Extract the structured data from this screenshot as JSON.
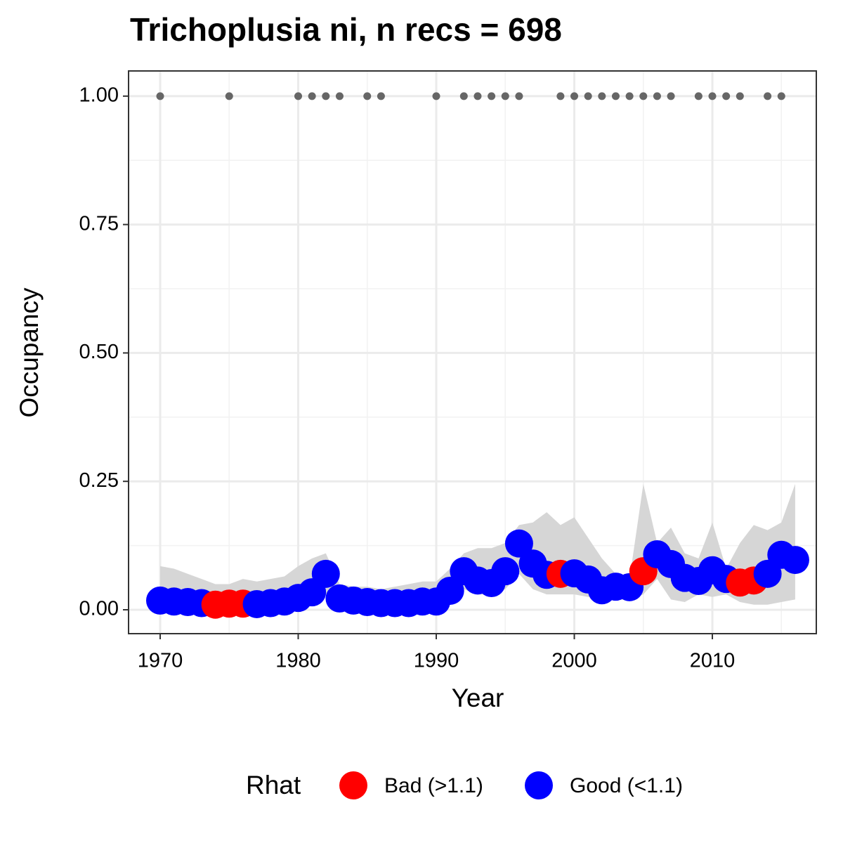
{
  "chart_data": {
    "type": "scatter",
    "title": "Trichoplusia ni, n recs = 698",
    "x_label": "Year",
    "y_label": "Occupancy",
    "legend_title": "Rhat",
    "legend_position": "bottom",
    "grid": true,
    "minor_grid": true,
    "xlim": [
      1967.71,
      2017.53
    ],
    "ylim": [
      -0.0465,
      1.049
    ],
    "xticks": [
      1970,
      1980,
      1990,
      2000,
      2010
    ],
    "yticks": [
      {
        "value": 0,
        "label": "0.00"
      },
      {
        "value": 0.25,
        "label": "0.25"
      },
      {
        "value": 0.5,
        "label": "0.50"
      },
      {
        "value": 0.75,
        "label": "0.75"
      },
      {
        "value": 1,
        "label": "1.00"
      }
    ],
    "ribbon": {
      "color": "#d6d6d6",
      "x": [
        1970,
        1971,
        1972,
        1973,
        1974,
        1975,
        1976,
        1977,
        1978,
        1979,
        1980,
        1981,
        1982,
        1983,
        1984,
        1985,
        1986,
        1987,
        1988,
        1989,
        1990,
        1991,
        1992,
        1993,
        1994,
        1995,
        1996,
        1997,
        1998,
        1999,
        2000,
        2001,
        2002,
        2003,
        2004,
        2005,
        2006,
        2007,
        2008,
        2009,
        2010,
        2011,
        2012,
        2013,
        2014,
        2015,
        2016
      ],
      "upper": [
        0.085,
        0.08,
        0.07,
        0.06,
        0.05,
        0.05,
        0.06,
        0.055,
        0.06,
        0.065,
        0.085,
        0.1,
        0.11,
        0.05,
        0.045,
        0.045,
        0.04,
        0.045,
        0.05,
        0.055,
        0.055,
        0.08,
        0.11,
        0.12,
        0.12,
        0.13,
        0.165,
        0.17,
        0.19,
        0.165,
        0.18,
        0.14,
        0.1,
        0.07,
        0.06,
        0.245,
        0.13,
        0.16,
        0.11,
        0.1,
        0.17,
        0.08,
        0.13,
        0.165,
        0.155,
        0.17,
        0.245
      ],
      "lower": [
        0.005,
        0.003,
        0.003,
        0.002,
        0.001,
        0.001,
        0.002,
        0.002,
        0.003,
        0.004,
        0.005,
        0.01,
        0.03,
        0.004,
        0.003,
        0.002,
        0.002,
        0.002,
        0.002,
        0.002,
        0.003,
        0.01,
        0.04,
        0.03,
        0.03,
        0.04,
        0.07,
        0.04,
        0.03,
        0.03,
        0.03,
        0.025,
        0.02,
        0.02,
        0.02,
        0.03,
        0.06,
        0.02,
        0.015,
        0.03,
        0.025,
        0.03,
        0.015,
        0.01,
        0.01,
        0.015,
        0.02
      ]
    },
    "records": {
      "color": "#666666",
      "x": [
        1970,
        1975,
        1980,
        1981,
        1982,
        1983,
        1985,
        1986,
        1990,
        1992,
        1993,
        1994,
        1995,
        1996,
        1999,
        2000,
        2001,
        2002,
        2003,
        2004,
        2005,
        2006,
        2007,
        2009,
        2010,
        2011,
        2012,
        2014,
        2015
      ],
      "values": [
        1,
        1,
        1,
        1,
        1,
        1,
        1,
        1,
        1,
        1,
        1,
        1,
        1,
        1,
        1,
        1,
        1,
        1,
        1,
        1,
        1,
        1,
        1,
        1,
        1,
        1,
        1,
        1,
        1
      ]
    },
    "series": [
      {
        "name": "Bad (>1.1)",
        "color": "#ff0000",
        "x": [
          1974,
          1975,
          1976,
          1999,
          2005,
          2012,
          2013
        ],
        "values": [
          0.01,
          0.012,
          0.012,
          0.07,
          0.075,
          0.053,
          0.057
        ]
      },
      {
        "name": "Good (<1.1)",
        "color": "#0000ff",
        "x": [
          1970,
          1971,
          1972,
          1973,
          1977,
          1978,
          1979,
          1980,
          1981,
          1982,
          1983,
          1984,
          1985,
          1986,
          1987,
          1988,
          1989,
          1990,
          1991,
          1992,
          1993,
          1994,
          1995,
          1996,
          1997,
          1998,
          2000,
          2001,
          2002,
          2003,
          2004,
          2006,
          2007,
          2008,
          2009,
          2010,
          2011,
          2014,
          2015,
          2016
        ],
        "values": [
          0.018,
          0.016,
          0.015,
          0.013,
          0.011,
          0.013,
          0.016,
          0.023,
          0.034,
          0.07,
          0.022,
          0.018,
          0.015,
          0.013,
          0.013,
          0.013,
          0.016,
          0.016,
          0.037,
          0.075,
          0.057,
          0.052,
          0.075,
          0.129,
          0.09,
          0.068,
          0.071,
          0.059,
          0.038,
          0.045,
          0.044,
          0.108,
          0.089,
          0.062,
          0.056,
          0.077,
          0.06,
          0.07,
          0.107,
          0.097
        ]
      }
    ]
  }
}
